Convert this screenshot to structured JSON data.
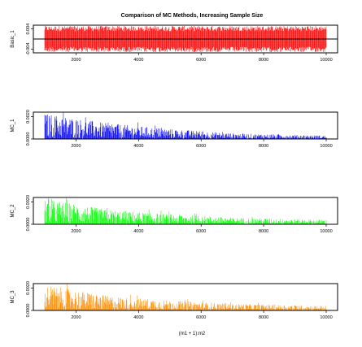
{
  "title": "Comparison of MC Methods, Increasing Sample Size",
  "xlabel": "(m1 + 1):m2",
  "x_range": [
    1000,
    10000
  ],
  "x_ticks": [
    "2000",
    "4000",
    "6000",
    "8000",
    "10000"
  ],
  "chart_data": [
    {
      "type": "bar",
      "title": "Comparison of MC Methods, Increasing Sample Size",
      "ylabel": "Basic_1",
      "color": "#ff0000",
      "reference_line_color": "#000000",
      "xlim": [
        1000,
        10000
      ],
      "ylim": [
        -0.0055,
        0.0055
      ],
      "y_ticks": [
        "-0.004",
        "0.004"
      ],
      "y_tick_values": [
        -0.004,
        0.004
      ],
      "reference_y": 0,
      "envelope": [
        {
          "x": 1000,
          "y": 0.0052
        },
        {
          "x": 10000,
          "y": 0.0052
        }
      ],
      "envelope_low": [
        {
          "x": 1000,
          "y": -0.0052
        },
        {
          "x": 10000,
          "y": -0.0052
        }
      ]
    },
    {
      "type": "bar",
      "ylabel": "MC_1",
      "color": "#0000ff",
      "reference_line_color": "#ff0000",
      "xlim": [
        1000,
        10000
      ],
      "ylim": [
        0,
        0.0024
      ],
      "y_ticks": [
        "0.0000",
        "0.0020"
      ],
      "y_tick_values": [
        0,
        0.002
      ],
      "reference_y": 0,
      "envelope": [
        {
          "x": 1000,
          "y": 0.0023
        },
        {
          "x": 3000,
          "y": 0.0014
        },
        {
          "x": 5000,
          "y": 0.0009
        },
        {
          "x": 7000,
          "y": 0.0005
        },
        {
          "x": 10000,
          "y": 0.0003
        }
      ]
    },
    {
      "type": "bar",
      "ylabel": "MC_2",
      "color": "#00ff00",
      "reference_line_color": "#ff0000",
      "xlim": [
        1000,
        10000
      ],
      "ylim": [
        0,
        0.0024
      ],
      "y_ticks": [
        "0.0000",
        "0.0020"
      ],
      "y_tick_values": [
        0,
        0.002
      ],
      "reference_y": 0,
      "envelope": [
        {
          "x": 1000,
          "y": 0.0023
        },
        {
          "x": 3000,
          "y": 0.0013
        },
        {
          "x": 5000,
          "y": 0.0009
        },
        {
          "x": 7000,
          "y": 0.0006
        },
        {
          "x": 10000,
          "y": 0.0004
        }
      ]
    },
    {
      "type": "bar",
      "ylabel": "MC_3",
      "color": "#ff8c00",
      "reference_line_color": "#ff0000",
      "xlim": [
        1000,
        10000
      ],
      "ylim": [
        0,
        0.0024
      ],
      "y_ticks": [
        "0.0000",
        "0.0020"
      ],
      "y_tick_values": [
        0,
        0.002
      ],
      "reference_y": 0,
      "envelope": [
        {
          "x": 1000,
          "y": 0.0023
        },
        {
          "x": 3000,
          "y": 0.0013
        },
        {
          "x": 5000,
          "y": 0.0009
        },
        {
          "x": 7000,
          "y": 0.0006
        },
        {
          "x": 10000,
          "y": 0.0004
        }
      ]
    }
  ]
}
